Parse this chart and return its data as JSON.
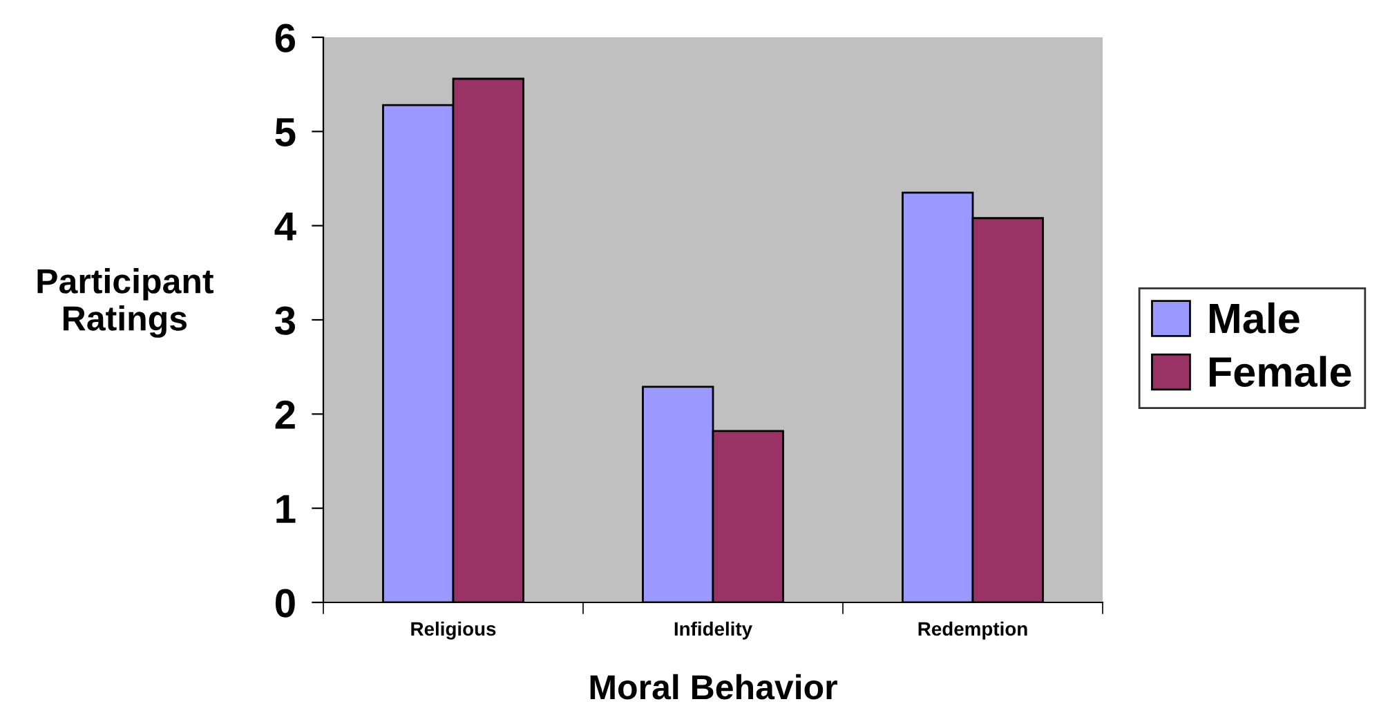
{
  "chart_data": {
    "type": "bar",
    "xlabel": "Moral Behavior",
    "ylabel": "Participant\nRatings",
    "categories": [
      "Religious",
      "Infidelity",
      "Redemption"
    ],
    "series": [
      {
        "name": "Male",
        "color": "#9999ff",
        "values": [
          5.28,
          2.29,
          4.35
        ]
      },
      {
        "name": "Female",
        "color": "#993366",
        "values": [
          5.56,
          1.82,
          4.08
        ]
      }
    ],
    "ylim": [
      0,
      6
    ],
    "yticks": [
      0,
      1,
      2,
      3,
      4,
      5,
      6
    ],
    "grid": false,
    "legend": "right"
  }
}
